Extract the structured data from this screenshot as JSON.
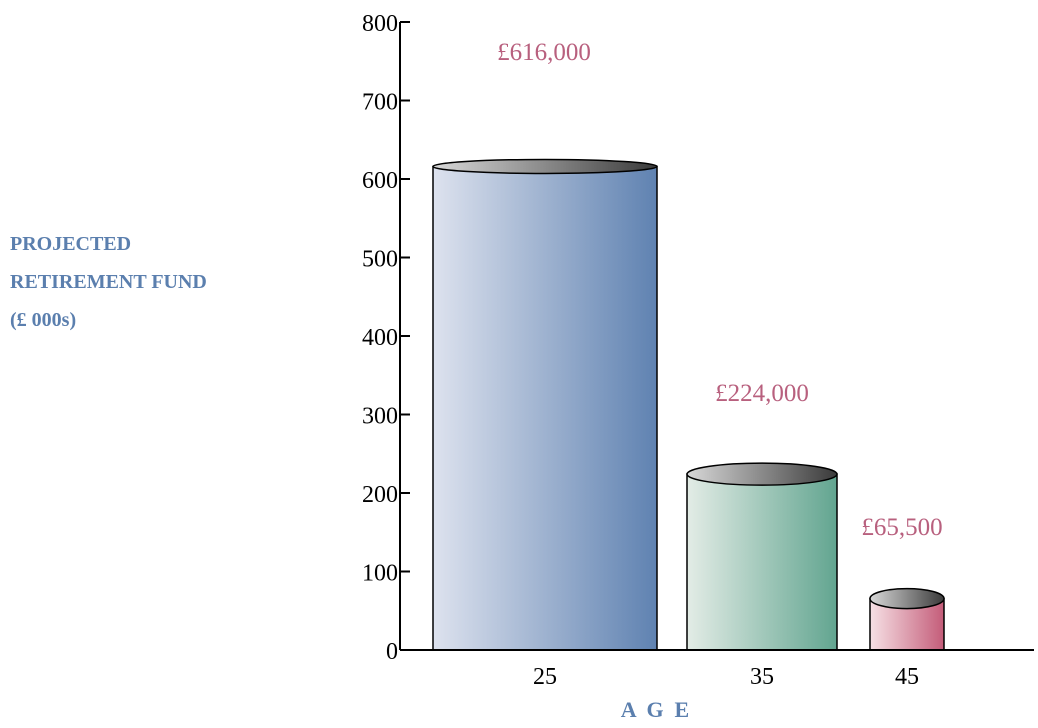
{
  "chart_data": {
    "type": "bar",
    "categories": [
      "25",
      "35",
      "45"
    ],
    "values": [
      616,
      224,
      65.5
    ],
    "value_labels": [
      "£616,000",
      "£224,000",
      "£65,500"
    ],
    "ylabel_lines": [
      "PROJECTED",
      "RETIREMENT FUND",
      "(£ 000s)"
    ],
    "xlabel": "A  G  E",
    "ylim": [
      0,
      800
    ],
    "yticks": [
      "0",
      "100",
      "200",
      "300",
      "400",
      "500",
      "600",
      "700",
      "800"
    ],
    "grid": false,
    "bar_colors": [
      [
        "#dde2ee",
        "#5f82b1"
      ],
      [
        "#e3ece6",
        "#62a590"
      ],
      [
        "#f6e1e5",
        "#c45c79"
      ]
    ],
    "label_color": "#b8607e",
    "axis_label_color": "#5b7fae"
  }
}
